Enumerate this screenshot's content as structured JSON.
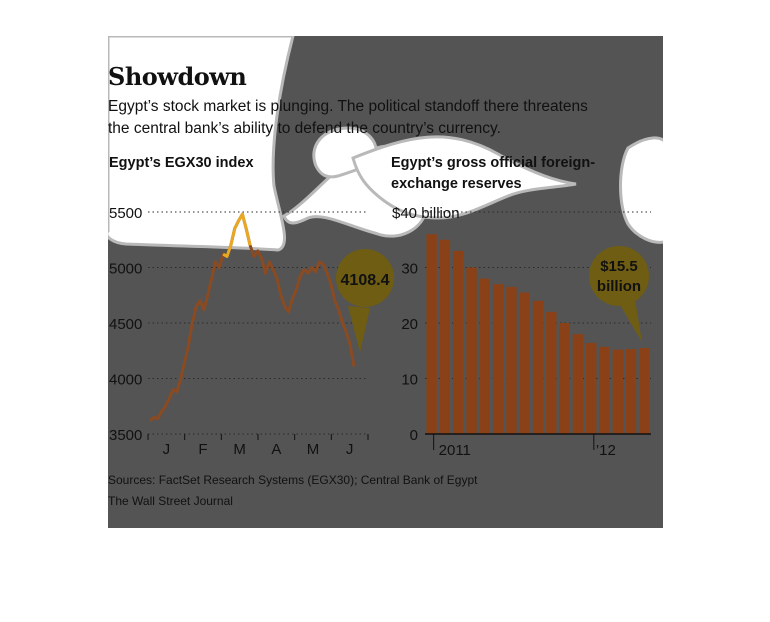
{
  "title": "Showdown",
  "subtitle_lines": [
    "Egypt’s stock market is plunging. The political standoff there threatens",
    "the central bank’s ability to defend the country’s currency."
  ],
  "sources": "Sources: FactSet Research Systems (EGX30); Central Bank of Egypt",
  "credit": "The Wall Street Journal",
  "colors": {
    "panel": "#545454",
    "line": "#8a4a22",
    "line_highlight": "#e8a825",
    "bar": "#8b4118",
    "callout": "#6e5d12",
    "blob": "#ffffff",
    "blob_edge": "#b9b9b9"
  },
  "chart_data": [
    {
      "type": "line",
      "title": "Egypt’s EGX30 index",
      "ylim": [
        3500,
        5500
      ],
      "yticks": [
        3500,
        4000,
        4500,
        5000,
        5500
      ],
      "ytick_labels": [
        "3500",
        "4000",
        "4500",
        "5000",
        "5500"
      ],
      "x_tick_labels": [
        "J",
        "F",
        "M",
        "A",
        "M",
        "J"
      ],
      "grid": true,
      "series": [
        {
          "values": [
            3620,
            3650,
            3640,
            3700,
            3750,
            3820,
            3900,
            3880,
            4000,
            4150,
            4300,
            4500,
            4650,
            4700,
            4620,
            4750,
            4900,
            5050,
            5000,
            5120,
            5100,
            5200,
            5350,
            5420,
            5480,
            5350,
            5200,
            5100,
            5150,
            5080,
            4950,
            5050,
            4980,
            4900,
            4750,
            4650,
            4600,
            4720,
            4800,
            4920,
            4980,
            4950,
            5000,
            4960,
            5050,
            5030,
            4950,
            4850,
            4700,
            4620,
            4500,
            4420,
            4300,
            4108.4
          ]
        }
      ],
      "callout": "4108.4"
    },
    {
      "type": "bar",
      "title_lines": [
        "Egypt’s gross official foreign-",
        "exchange reserves"
      ],
      "ylim": [
        0,
        40
      ],
      "yticks": [
        0,
        10,
        20,
        30,
        40
      ],
      "ytick_labels": [
        "0",
        "10",
        "20",
        "30",
        "$40 billion"
      ],
      "x_tick_labels": [
        "2011",
        "’12"
      ],
      "grid": true,
      "values": [
        36,
        35,
        33,
        30,
        28,
        27,
        26.5,
        25.5,
        24,
        22,
        20,
        18,
        16.4,
        15.7,
        15.2,
        15.3,
        15.5
      ],
      "callout": [
        "$15.5",
        "billion"
      ]
    }
  ]
}
